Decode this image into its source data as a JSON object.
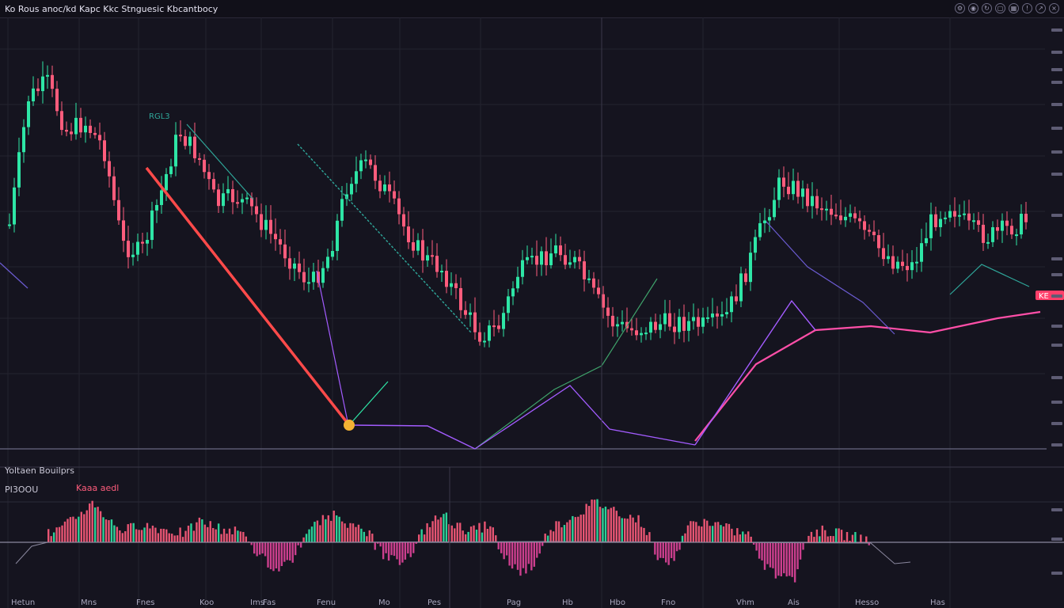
{
  "header": {
    "title": "Ko Rous anoc/kd Kapc Kkc Stnguesic Kbcantbocy",
    "icons": [
      "settings-icon",
      "camera-icon",
      "refresh-icon",
      "layout-icon",
      "grid-icon",
      "alert-icon",
      "share-icon",
      "close-icon"
    ]
  },
  "colors": {
    "background": "#15141f",
    "bull": "#2ee6a6",
    "bear": "#ff5c7c",
    "trend": "#ff4a4a",
    "purple": "#a35cff",
    "pink": "#ff4fa8",
    "teal": "#2fa79a",
    "marker": "#f2b233"
  },
  "panels": {
    "volume_label": "Yoltaen Bouilprs",
    "indicator_label": "PI3OOU",
    "indicator_sub": "Kaaa aedl"
  },
  "annotations": {
    "upper_left": "RGL3",
    "price_badge": "KE"
  },
  "x_labels": [
    "Hetun",
    "Mns",
    "Fnes",
    "Koo",
    "Ims",
    "Fas",
    "Fenu",
    "Mo",
    "Pes",
    "Pag",
    "Hb",
    "Hbo",
    "Fno",
    "Vhm",
    "Ais",
    "Hesso",
    "Has"
  ],
  "chart_data": {
    "type": "candlestick",
    "title": "Ko Rous anoc/kd Kapc Kkc Stnguesic Kbcantbocy",
    "price_path": [
      55,
      86,
      90,
      78,
      80,
      74,
      50,
      48,
      62,
      78,
      72,
      60,
      62,
      58,
      52,
      46,
      40,
      48,
      66,
      70,
      63,
      54,
      47,
      44,
      35,
      28,
      30,
      43,
      46,
      49,
      46,
      38,
      31,
      29,
      30,
      31,
      31,
      30,
      32,
      42,
      55,
      66,
      63,
      60,
      58,
      55,
      50,
      46,
      45,
      56,
      60,
      54,
      52,
      54,
      56
    ],
    "oscillator_path": [
      2,
      4,
      8,
      12,
      6,
      3,
      5,
      4,
      3,
      2,
      6,
      4,
      3,
      2,
      -4,
      -8,
      -5,
      3,
      6,
      9,
      4,
      2,
      -3,
      -6,
      -2,
      5,
      8,
      4,
      3,
      5,
      -4,
      -9,
      -6,
      4,
      6,
      9,
      12,
      10,
      8,
      6,
      -3,
      -6,
      4,
      6,
      5,
      3,
      2,
      -6,
      -10,
      -12,
      2,
      3,
      2,
      1,
      0
    ]
  }
}
